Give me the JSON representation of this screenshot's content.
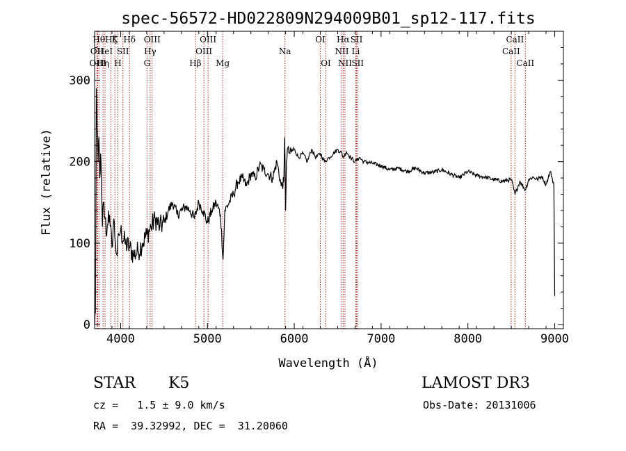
{
  "chart_data": {
    "type": "line",
    "title": "spec-56572-HD022809N294009B01_sp12-117.fits",
    "xlabel": "Wavelength (Å)",
    "ylabel": "Flux (relative)",
    "xlim": [
      3700,
      9100
    ],
    "ylim": [
      -5,
      360
    ],
    "xticks": [
      4000,
      5000,
      6000,
      7000,
      8000,
      9000
    ],
    "yticks": [
      0,
      100,
      200,
      300
    ],
    "grid": false,
    "series": [
      {
        "x": [
          3700,
          3710,
          3720,
          3730,
          3740,
          3750,
          3760,
          3770,
          3780,
          3790,
          3800,
          3820,
          3840,
          3860,
          3880,
          3900,
          3920,
          3940,
          3960,
          3980,
          4000,
          4050,
          4100,
          4150,
          4200,
          4250,
          4300,
          4350,
          4400,
          4450,
          4500,
          4550,
          4600,
          4650,
          4700,
          4750,
          4800,
          4850,
          4900,
          4950,
          5000,
          5050,
          5100,
          5150,
          5180,
          5200,
          5250,
          5300,
          5350,
          5400,
          5450,
          5500,
          5550,
          5600,
          5650,
          5700,
          5750,
          5800,
          5850,
          5880,
          5890,
          5900,
          5910,
          5920,
          5950,
          6000,
          6050,
          6100,
          6150,
          6200,
          6250,
          6300,
          6350,
          6400,
          6450,
          6500,
          6550,
          6563,
          6600,
          6650,
          6700,
          6750,
          6800,
          6900,
          7000,
          7100,
          7200,
          7300,
          7400,
          7500,
          7600,
          7700,
          7800,
          7900,
          8000,
          8100,
          8200,
          8300,
          8400,
          8500,
          8542,
          8600,
          8662,
          8700,
          8750,
          8800,
          8850,
          8900,
          8950,
          8990,
          9000
        ],
        "y": [
          0,
          15,
          290,
          240,
          200,
          230,
          180,
          210,
          160,
          120,
          150,
          130,
          110,
          140,
          120,
          95,
          130,
          100,
          85,
          110,
          115,
          100,
          95,
          85,
          90,
          100,
          110,
          120,
          130,
          120,
          125,
          140,
          150,
          135,
          140,
          145,
          140,
          130,
          150,
          140,
          125,
          140,
          150,
          135,
          80,
          140,
          150,
          160,
          175,
          180,
          170,
          185,
          180,
          195,
          190,
          185,
          180,
          200,
          170,
          175,
          230,
          140,
          200,
          215,
          210,
          215,
          205,
          210,
          200,
          215,
          205,
          210,
          200,
          205,
          210,
          215,
          210,
          205,
          212,
          205,
          200,
          205,
          200,
          198,
          195,
          190,
          192,
          188,
          192,
          186,
          187,
          190,
          185,
          180,
          188,
          183,
          181,
          178,
          176,
          178,
          160,
          176,
          165,
          178,
          181,
          178,
          182,
          172,
          188,
          172,
          35
        ]
      }
    ],
    "line_markers": [
      {
        "wavelength": 3727,
        "label": "OII",
        "row": 1
      },
      {
        "wavelength": 3736,
        "label": "OIII",
        "row": 2
      },
      {
        "wavelength": 3750,
        "label": "Hθ",
        "row": 0
      },
      {
        "wavelength": 3797,
        "label": "Hη",
        "row": 2
      },
      {
        "wavelength": 3820,
        "label": "HeI",
        "row": 1
      },
      {
        "wavelength": 3889,
        "label": "Hζ",
        "row": 0
      },
      {
        "wavelength": 3934,
        "label": "K",
        "row": 0
      },
      {
        "wavelength": 3968,
        "label": "H",
        "row": 2
      },
      {
        "wavelength": 4026,
        "label": "SII",
        "row": 1
      },
      {
        "wavelength": 4102,
        "label": "Hδ",
        "row": 0
      },
      {
        "wavelength": 4304,
        "label": "G",
        "row": 2
      },
      {
        "wavelength": 4340,
        "label": "Hγ",
        "row": 1
      },
      {
        "wavelength": 4363,
        "label": "OIII",
        "row": 0
      },
      {
        "wavelength": 4861,
        "label": "Hβ",
        "row": 2
      },
      {
        "wavelength": 4959,
        "label": "OIII",
        "row": 1
      },
      {
        "wavelength": 5007,
        "label": "OIII",
        "row": 0
      },
      {
        "wavelength": 5175,
        "label": "Mg",
        "row": 2
      },
      {
        "wavelength": 5893,
        "label": "Na",
        "row": 1
      },
      {
        "wavelength": 6300,
        "label": "OI",
        "row": 0
      },
      {
        "wavelength": 6364,
        "label": "OI",
        "row": 2
      },
      {
        "wavelength": 6548,
        "label": "NII",
        "row": 1
      },
      {
        "wavelength": 6563,
        "label": "Hα",
        "row": 0
      },
      {
        "wavelength": 6584,
        "label": "NII",
        "row": 2
      },
      {
        "wavelength": 6708,
        "label": "Li",
        "row": 1
      },
      {
        "wavelength": 6717,
        "label": "SII",
        "row": 0
      },
      {
        "wavelength": 6731,
        "label": "SII",
        "row": 2
      },
      {
        "wavelength": 8498,
        "label": "CaII",
        "row": 1
      },
      {
        "wavelength": 8542,
        "label": "CaII",
        "row": 0
      },
      {
        "wavelength": 8662,
        "label": "CaII",
        "row": 2
      }
    ]
  },
  "info": {
    "object_class": "STAR",
    "subclass": "K5",
    "survey": "LAMOST DR3",
    "redshift": "cz =   1.5 ± 9.0 km/s",
    "obs_date": "Obs-Date: 20131006",
    "coords": "RA =  39.32992, DEC =  31.20060"
  },
  "colors": {
    "spectrum": "#000000",
    "marker_line": "#b22222",
    "text": "#000000"
  }
}
